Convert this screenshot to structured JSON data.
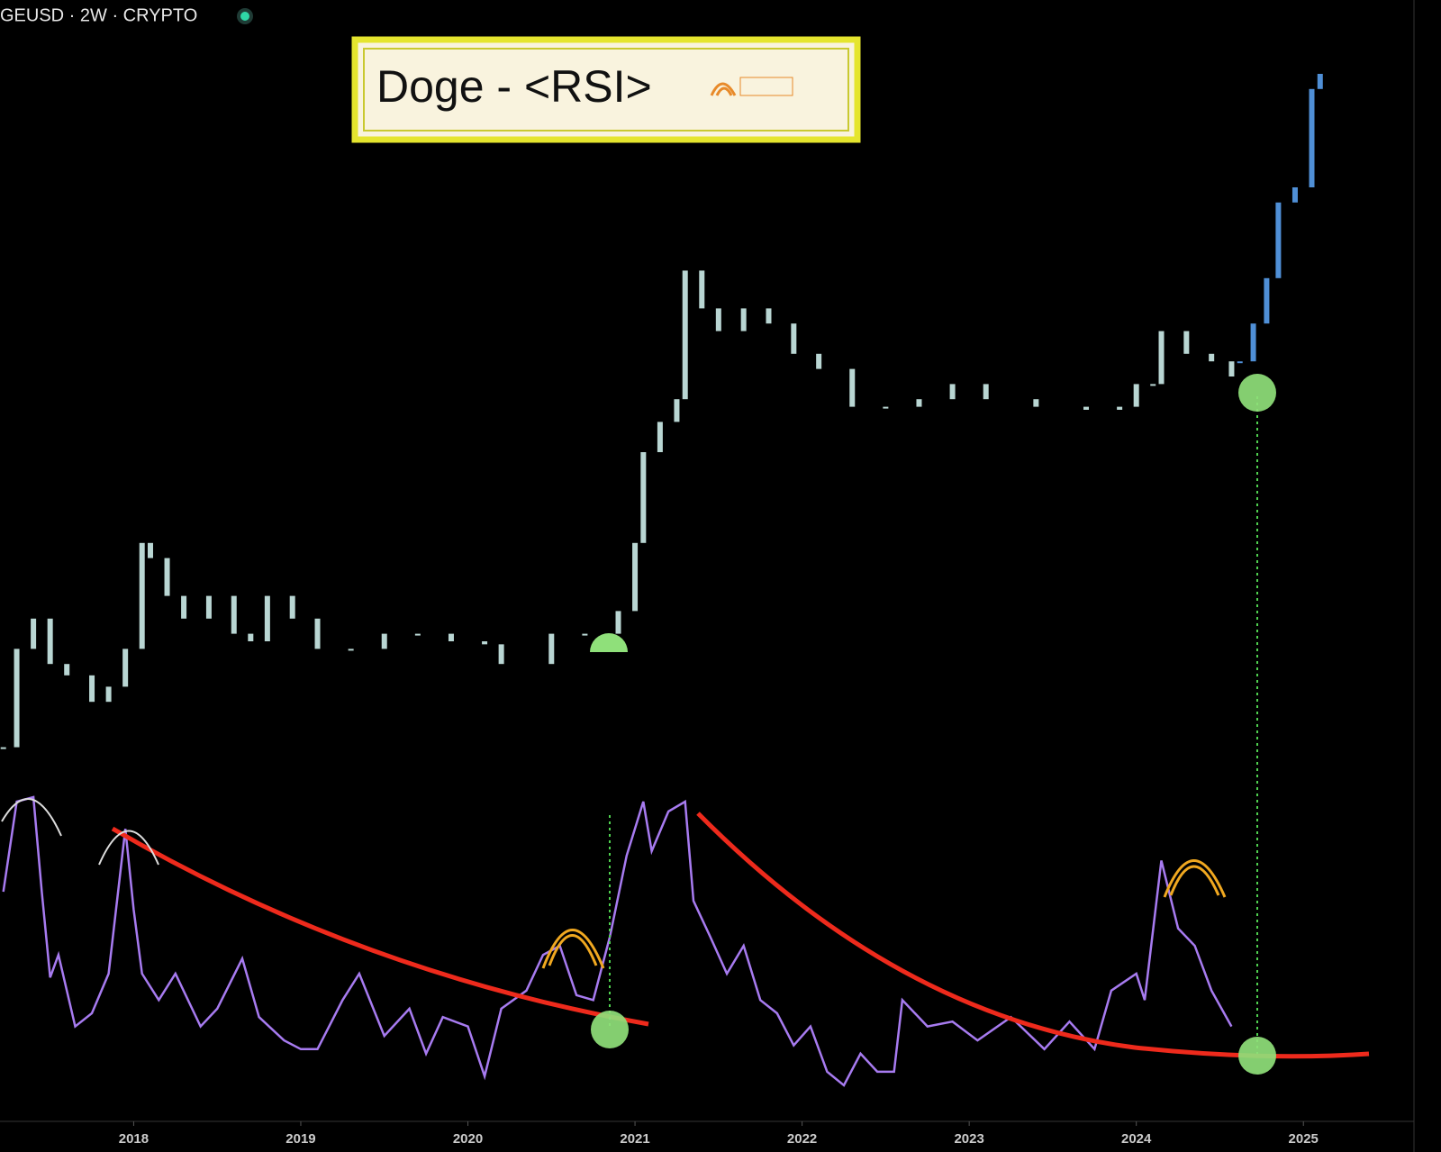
{
  "header": "GEUSD · 2W · CRYPTO",
  "chart_data": [
    {
      "type": "candle",
      "title": "Doge - <RSI>",
      "xlim": [
        2017.2,
        2025.5
      ],
      "ylim": [
        0,
        100
      ],
      "series": [
        {
          "color": "#b9d6d3",
          "x": [
            2017.22,
            2017.3,
            2017.4,
            2017.5,
            2017.6,
            2017.75,
            2017.85,
            2017.95,
            2018.05,
            2018.1,
            2018.2,
            2018.3,
            2018.45,
            2018.6,
            2018.7,
            2018.8,
            2018.95,
            2019.1,
            2019.3,
            2019.5,
            2019.7,
            2019.9,
            2020.1,
            2020.2,
            2020.5,
            2020.7,
            2020.9,
            2021.0,
            2021.05,
            2021.15,
            2021.25,
            2021.3,
            2021.4,
            2021.5,
            2021.65,
            2021.8,
            2021.95,
            2022.1,
            2022.3,
            2022.5,
            2022.7,
            2022.9,
            2023.1,
            2023.4,
            2023.7,
            2023.9,
            2024.0,
            2024.1,
            2024.15,
            2024.3,
            2024.45,
            2024.57
          ],
          "values": [
            6,
            19,
            23,
            17,
            15.5,
            12,
            14,
            19,
            33,
            31,
            26,
            23,
            26,
            21,
            20,
            26,
            23,
            19,
            19,
            21,
            21,
            20,
            19.6,
            17,
            21,
            21,
            24,
            33,
            45,
            49,
            52,
            69,
            64,
            61,
            64,
            62,
            58,
            56,
            51,
            51,
            52,
            54,
            52,
            51,
            50.6,
            51,
            54,
            54,
            61,
            58,
            57,
            55
          ]
        },
        {
          "color": "#4f8fd6",
          "x": [
            2024.62,
            2024.7,
            2024.78,
            2024.85,
            2024.95,
            2025.05,
            2025.1
          ],
          "values": [
            57,
            62,
            68,
            78,
            80,
            93,
            95
          ]
        }
      ]
    },
    {
      "type": "line",
      "xlim": [
        2017.2,
        2025.5
      ],
      "ylim": [
        15,
        95
      ],
      "xticks": [
        2018,
        2019,
        2020,
        2021,
        2022,
        2023,
        2024,
        2025
      ],
      "series": [
        {
          "color": "#a77bf0",
          "x": [
            2017.22,
            2017.3,
            2017.4,
            2017.45,
            2017.5,
            2017.55,
            2017.65,
            2017.75,
            2017.85,
            2017.95,
            2018.0,
            2018.05,
            2018.15,
            2018.25,
            2018.4,
            2018.5,
            2018.65,
            2018.75,
            2018.9,
            2019.0,
            2019.1,
            2019.25,
            2019.35,
            2019.5,
            2019.65,
            2019.75,
            2019.85,
            2020.0,
            2020.1,
            2020.2,
            2020.35,
            2020.45,
            2020.55,
            2020.65,
            2020.75,
            2020.85,
            2020.95,
            2021.05,
            2021.1,
            2021.2,
            2021.3,
            2021.35,
            2021.45,
            2021.55,
            2021.65,
            2021.75,
            2021.85,
            2021.95,
            2022.05,
            2022.15,
            2022.25,
            2022.35,
            2022.45,
            2022.55,
            2022.6,
            2022.75,
            2022.9,
            2023.05,
            2023.25,
            2023.45,
            2023.6,
            2023.75,
            2023.85,
            2024.0,
            2024.05,
            2024.15,
            2024.25,
            2024.35,
            2024.45,
            2024.57
          ],
          "values": [
            68.7,
            92.6,
            93.8,
            68.7,
            46,
            52,
            33,
            36.5,
            47,
            85.4,
            64,
            47,
            40,
            47,
            33,
            37.7,
            51,
            35.5,
            29.3,
            27,
            27,
            40,
            47,
            30.5,
            37.7,
            25.8,
            35.5,
            33,
            19.8,
            37.7,
            42.5,
            52,
            54.4,
            41.3,
            40,
            56.8,
            78.3,
            92.6,
            79.5,
            90,
            92.6,
            66.3,
            56.8,
            47,
            54.4,
            40,
            36.5,
            28,
            33,
            21,
            17.4,
            25.8,
            21,
            21,
            40,
            33,
            34.3,
            29.3,
            35.5,
            27,
            34.3,
            27,
            42.5,
            47,
            40,
            77,
            59,
            54.4,
            42.5,
            33
          ]
        }
      ]
    }
  ]
}
